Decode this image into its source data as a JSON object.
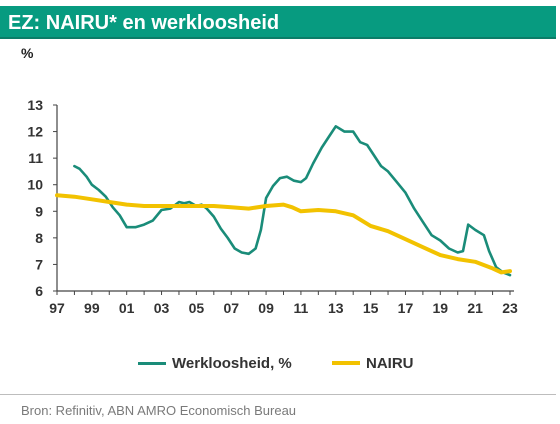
{
  "header": {
    "title": "EZ: NAIRU* en werkloosheid"
  },
  "footer": {
    "source": "Bron: Refinitiv, ABN AMRO Economisch Bureau"
  },
  "colors": {
    "header_bg": "#079b80",
    "werkloosheid": "#1a8c79",
    "nairu": "#f2c200"
  },
  "chart_data": {
    "type": "line",
    "title": "EZ: NAIRU* en werkloosheid",
    "ylabel": "%",
    "xlabel": "",
    "ylim": [
      6,
      13
    ],
    "xlim": [
      1997,
      2023
    ],
    "y_ticks": [
      "6",
      "7",
      "8",
      "9",
      "10",
      "11",
      "12",
      "13"
    ],
    "x_ticks": [
      "97",
      "99",
      "01",
      "03",
      "05",
      "07",
      "09",
      "11",
      "13",
      "15",
      "17",
      "19",
      "21",
      "23"
    ],
    "grid": false,
    "legend_position": "bottom",
    "series": [
      {
        "name": "Werkloosheid, %",
        "color": "#1a8c79",
        "points": [
          [
            1998.0,
            10.7
          ],
          [
            1998.3,
            10.6
          ],
          [
            1998.7,
            10.3
          ],
          [
            1999.0,
            10.0
          ],
          [
            1999.4,
            9.8
          ],
          [
            1999.8,
            9.55
          ],
          [
            2000.2,
            9.15
          ],
          [
            2000.6,
            8.85
          ],
          [
            2001.0,
            8.4
          ],
          [
            2001.5,
            8.4
          ],
          [
            2002.0,
            8.5
          ],
          [
            2002.5,
            8.65
          ],
          [
            2003.0,
            9.05
          ],
          [
            2003.5,
            9.1
          ],
          [
            2004.0,
            9.35
          ],
          [
            2004.3,
            9.3
          ],
          [
            2004.6,
            9.35
          ],
          [
            2005.0,
            9.2
          ],
          [
            2005.3,
            9.25
          ],
          [
            2005.6,
            9.1
          ],
          [
            2006.0,
            8.8
          ],
          [
            2006.4,
            8.35
          ],
          [
            2006.8,
            8.0
          ],
          [
            2007.2,
            7.6
          ],
          [
            2007.6,
            7.45
          ],
          [
            2008.0,
            7.4
          ],
          [
            2008.4,
            7.6
          ],
          [
            2008.7,
            8.3
          ],
          [
            2009.0,
            9.5
          ],
          [
            2009.4,
            9.95
          ],
          [
            2009.8,
            10.25
          ],
          [
            2010.2,
            10.3
          ],
          [
            2010.6,
            10.15
          ],
          [
            2011.0,
            10.1
          ],
          [
            2011.3,
            10.25
          ],
          [
            2011.7,
            10.8
          ],
          [
            2012.2,
            11.4
          ],
          [
            2012.6,
            11.8
          ],
          [
            2013.0,
            12.2
          ],
          [
            2013.5,
            12.0
          ],
          [
            2014.0,
            12.0
          ],
          [
            2014.4,
            11.6
          ],
          [
            2014.8,
            11.5
          ],
          [
            2015.2,
            11.1
          ],
          [
            2015.6,
            10.7
          ],
          [
            2016.0,
            10.5
          ],
          [
            2016.5,
            10.1
          ],
          [
            2017.0,
            9.7
          ],
          [
            2017.5,
            9.1
          ],
          [
            2018.0,
            8.6
          ],
          [
            2018.5,
            8.1
          ],
          [
            2019.0,
            7.9
          ],
          [
            2019.5,
            7.6
          ],
          [
            2020.0,
            7.45
          ],
          [
            2020.3,
            7.5
          ],
          [
            2020.6,
            8.5
          ],
          [
            2021.0,
            8.3
          ],
          [
            2021.5,
            8.1
          ],
          [
            2021.8,
            7.5
          ],
          [
            2022.2,
            6.9
          ],
          [
            2022.6,
            6.7
          ],
          [
            2023.0,
            6.6
          ]
        ]
      },
      {
        "name": "NAIRU",
        "color": "#f2c200",
        "points": [
          [
            1997.0,
            9.6
          ],
          [
            1998.0,
            9.55
          ],
          [
            1999.0,
            9.45
          ],
          [
            2000.0,
            9.35
          ],
          [
            2001.0,
            9.25
          ],
          [
            2002.0,
            9.2
          ],
          [
            2003.0,
            9.2
          ],
          [
            2004.0,
            9.2
          ],
          [
            2005.0,
            9.2
          ],
          [
            2006.0,
            9.2
          ],
          [
            2007.0,
            9.15
          ],
          [
            2008.0,
            9.1
          ],
          [
            2009.0,
            9.2
          ],
          [
            2010.0,
            9.25
          ],
          [
            2010.5,
            9.15
          ],
          [
            2011.0,
            9.0
          ],
          [
            2012.0,
            9.05
          ],
          [
            2013.0,
            9.0
          ],
          [
            2014.0,
            8.85
          ],
          [
            2015.0,
            8.45
          ],
          [
            2016.0,
            8.25
          ],
          [
            2017.0,
            7.95
          ],
          [
            2018.0,
            7.65
          ],
          [
            2019.0,
            7.35
          ],
          [
            2020.0,
            7.2
          ],
          [
            2021.0,
            7.1
          ],
          [
            2022.0,
            6.85
          ],
          [
            2022.5,
            6.7
          ],
          [
            2023.0,
            6.75
          ]
        ]
      }
    ]
  }
}
